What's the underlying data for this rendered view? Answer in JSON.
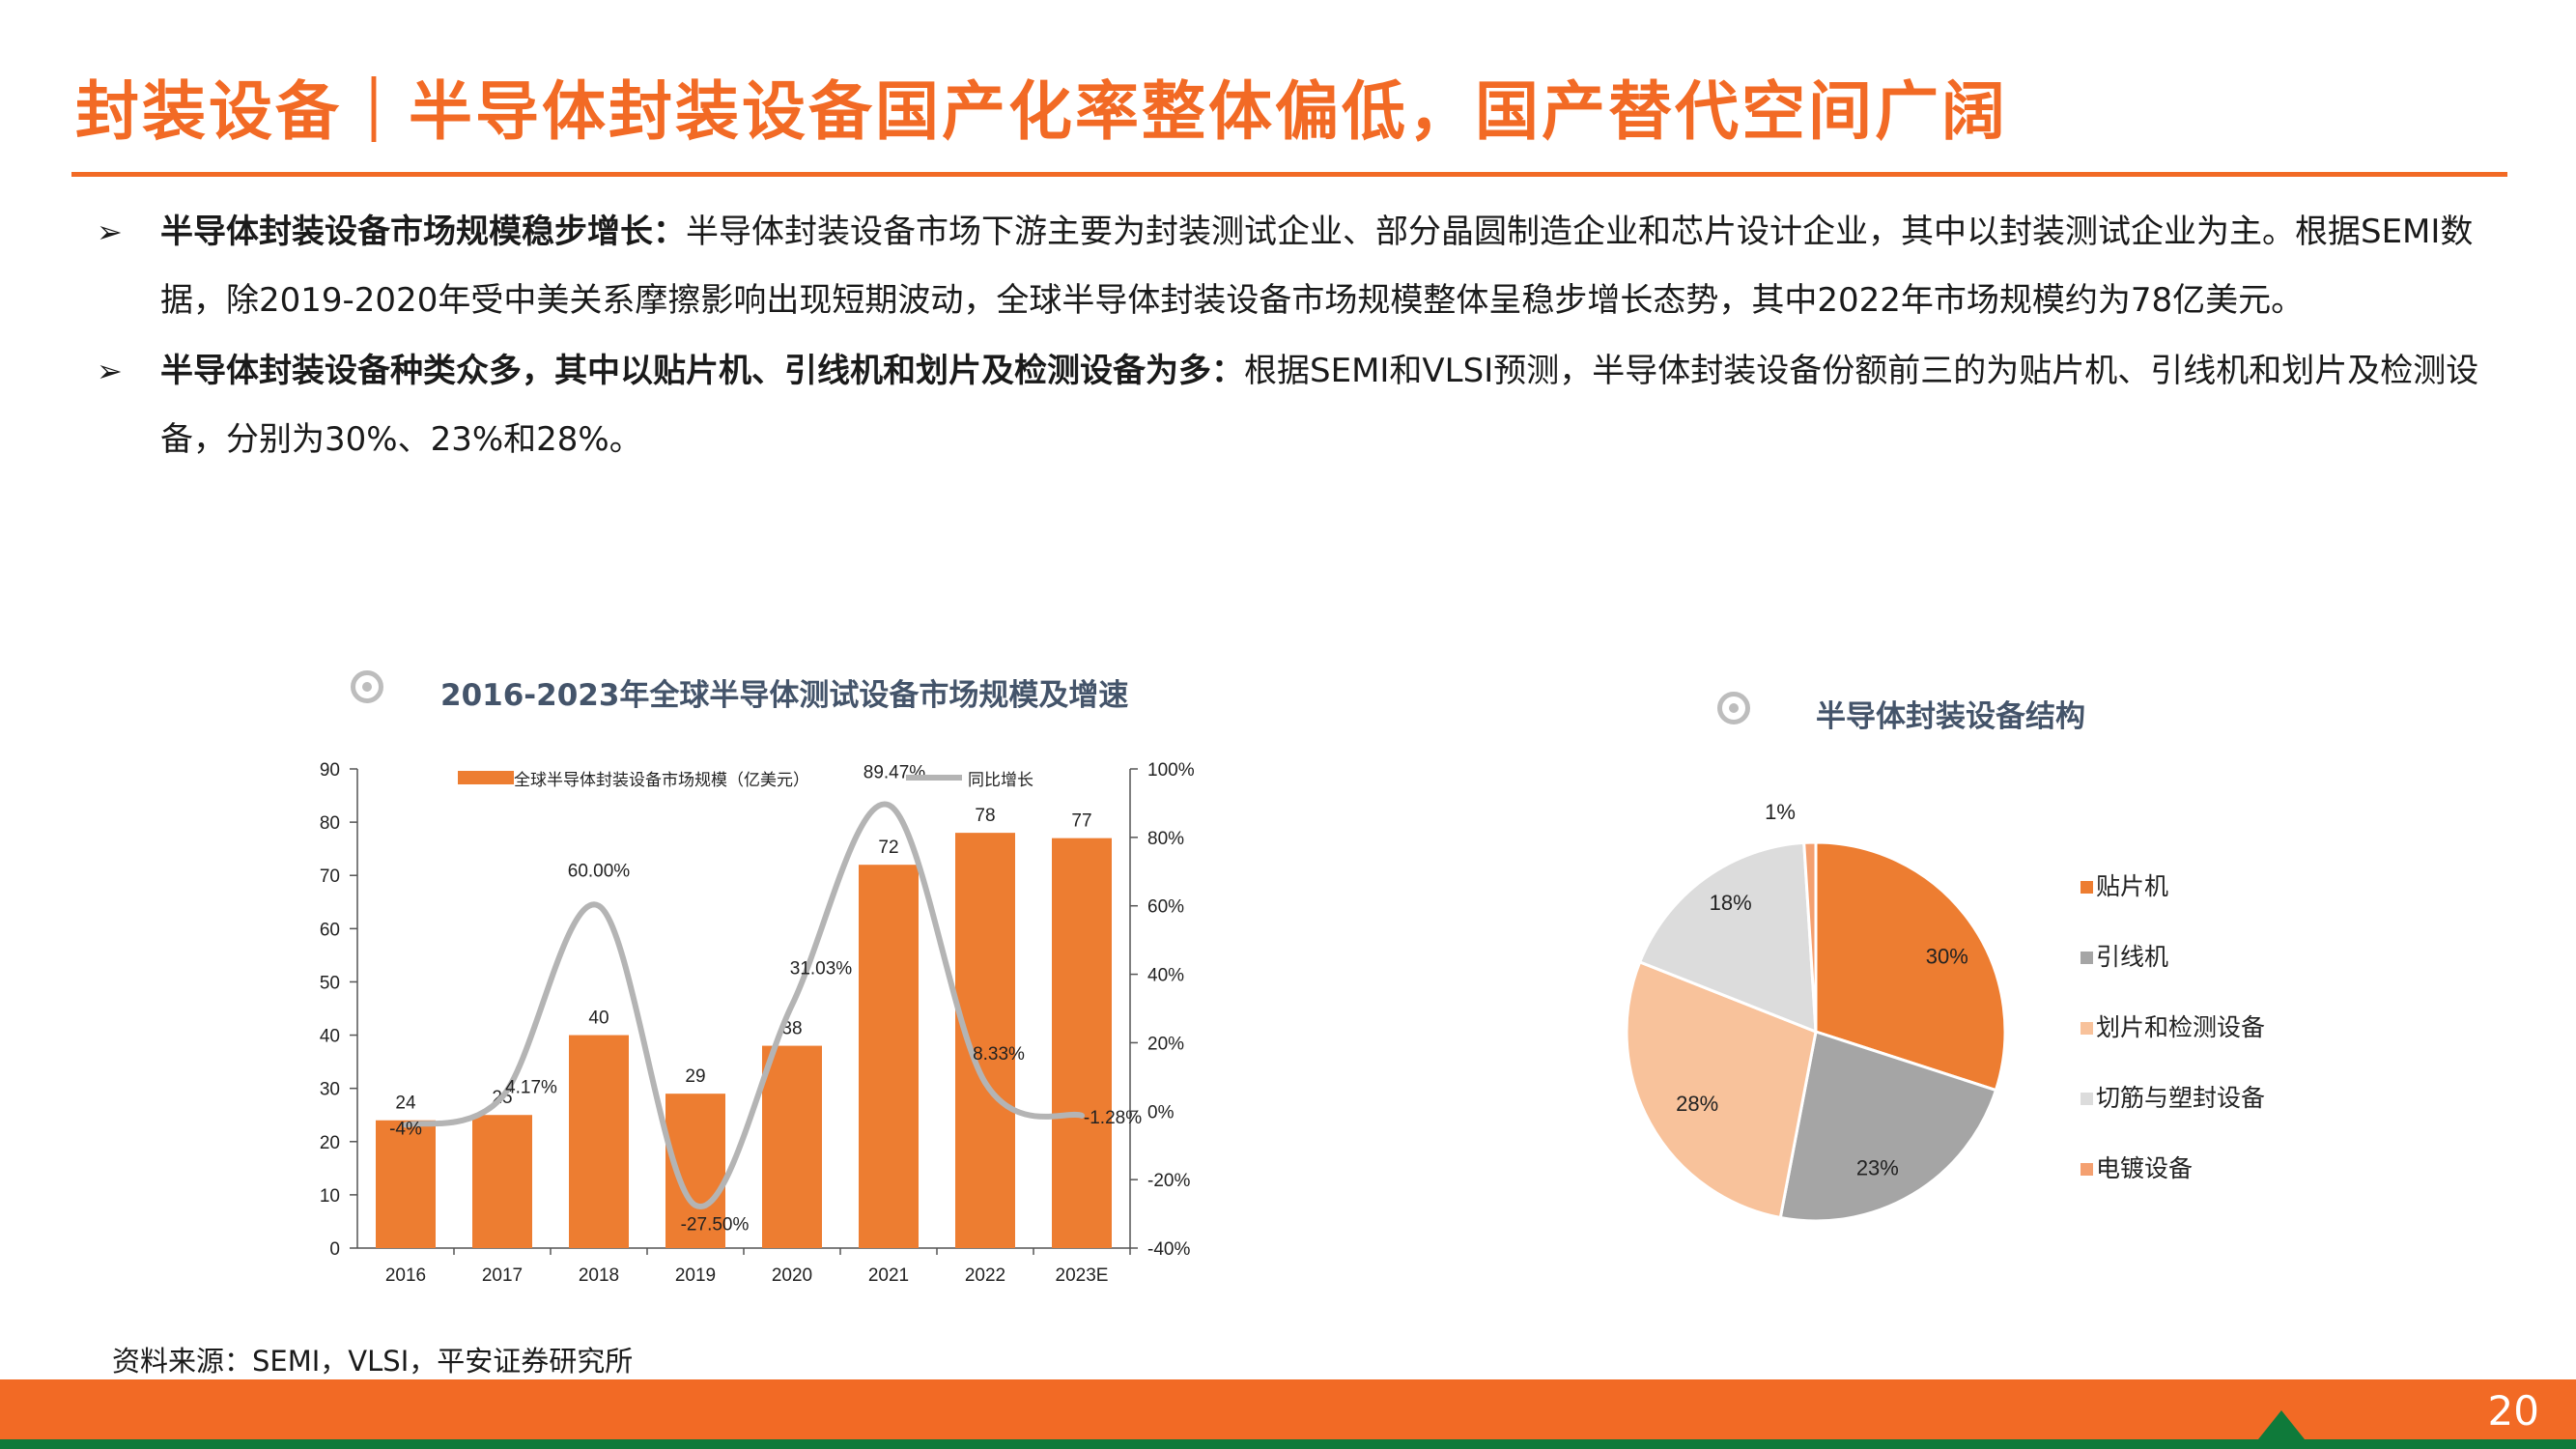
{
  "header": {
    "title": "封装设备｜半导体封装设备国产化率整体偏低，国产替代空间广阔"
  },
  "bullets": [
    {
      "arrow": "➢",
      "bold": "半导体封装设备市场规模稳步增长：",
      "text": "半导体封装设备市场下游主要为封装测试企业、部分晶圆制造企业和芯片设计企业，其中以封装测试企业为主。根据SEMI数据，除2019-2020年受中美关系摩擦影响出现短期波动，全球半导体封装设备市场规模整体呈稳步增长态势，其中2022年市场规模约为78亿美元。"
    },
    {
      "arrow": "➢",
      "bold": "半导体封装设备种类众多，其中以贴片机、引线机和划片及检测设备为多：",
      "text": "根据SEMI和VLSI预测，半导体封装设备份额前三的为贴片机、引线机和划片及检测设备，分别为30%、23%和28%。"
    }
  ],
  "chart_data": [
    {
      "type": "bar",
      "title": "2016-2023年全球半导体测试设备市场规模及增速",
      "categories": [
        "2016",
        "2017",
        "2018",
        "2019",
        "2020",
        "2021",
        "2022",
        "2023E"
      ],
      "series": [
        {
          "name": "全球半导体封装设备市场规模（亿美元）",
          "type": "bar",
          "axis": "left",
          "color": "#ed7d31",
          "values": [
            24,
            25,
            40,
            29,
            38,
            72,
            78,
            77
          ],
          "labels": [
            "24",
            "25",
            "40",
            "29",
            "38",
            "72",
            "78",
            "77"
          ]
        },
        {
          "name": "同比增长",
          "type": "line",
          "axis": "right",
          "color": "#b4b4b4",
          "values": [
            -4,
            4.17,
            60.0,
            -27.5,
            31.03,
            89.47,
            8.33,
            -1.28
          ],
          "labels": [
            "-4%",
            "4.17%",
            "60.00%",
            "-27.50%",
            "31.03%",
            "89.47%",
            "8.33%",
            "-1.28%"
          ]
        }
      ],
      "y_left": {
        "min": 0,
        "max": 90,
        "ticks": [
          "0",
          "10",
          "20",
          "30",
          "40",
          "50",
          "60",
          "70",
          "80",
          "90"
        ]
      },
      "y_right": {
        "min": -40,
        "max": 100,
        "ticks": [
          "-40%",
          "-20%",
          "0%",
          "20%",
          "40%",
          "60%",
          "80%",
          "100%"
        ]
      },
      "legend": "top"
    },
    {
      "type": "pie",
      "title": "半导体封装设备结构",
      "slices": [
        {
          "name": "贴片机",
          "value": 30,
          "label": "30%",
          "color": "#ed7d31"
        },
        {
          "name": "引线机",
          "value": 23,
          "label": "23%",
          "color": "#a5a5a5"
        },
        {
          "name": "划片和检测设备",
          "value": 28,
          "label": "28%",
          "color": "#f8c29b"
        },
        {
          "name": "切筋与塑封设备",
          "value": 18,
          "label": "18%",
          "color": "#dcdcdc"
        },
        {
          "name": "电镀设备",
          "value": 1,
          "label": "1%",
          "color": "#f4a070"
        }
      ],
      "legend": "right"
    }
  ],
  "source": "资料来源：SEMI，VLSI，平安证券研究所",
  "footer": {
    "page_number": "20"
  }
}
